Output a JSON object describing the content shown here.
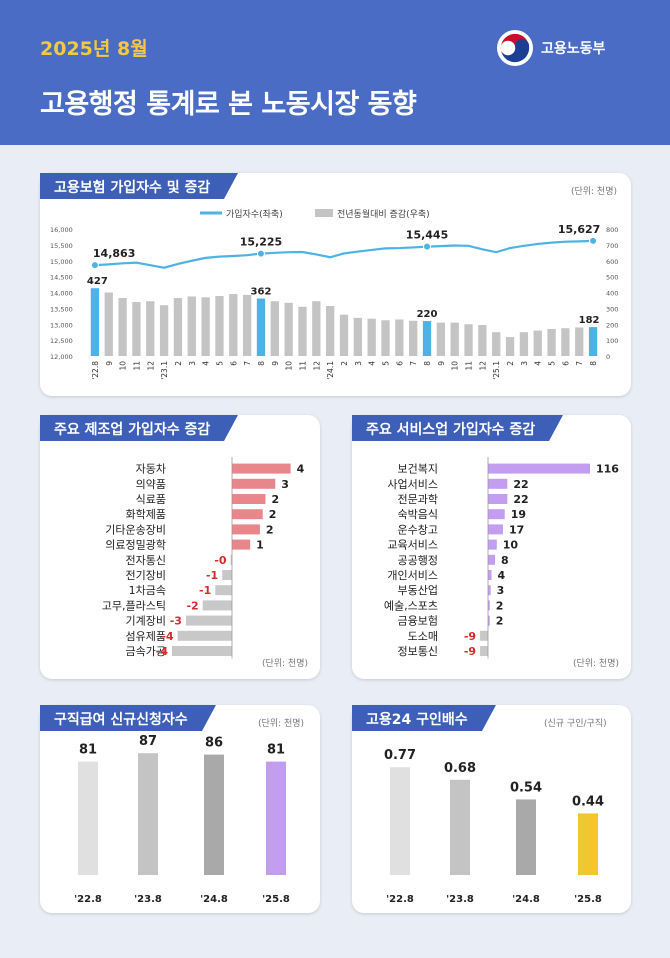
{
  "header": {
    "date": "2025년 8월",
    "title": "고용행정 통계로 본 노동시장 동향",
    "ministry": "고용노동부"
  },
  "colors": {
    "header_bg": "#4a6cc4",
    "tab_bg": "#3e5fb8",
    "date_text": "#f5c842",
    "line": "#4db2e6",
    "bar_gray": "#c4c4c4",
    "bar_highlight": "#4db2e6",
    "manufacturing_pos": "#e8868c",
    "negative_value_text": "#d62b2b",
    "service_bar": "#c39df0",
    "applicants_highlight": "#c39df0",
    "jobs_highlight": "#f2c62f"
  },
  "sections": {
    "insured": {
      "title": "고용보험 가입자수 및 증감",
      "unit": "(단위: 천명)"
    },
    "manufacturing": {
      "title": "주요 제조업 가입자수 증감",
      "unit": "(단위: 천명)"
    },
    "services": {
      "title": "주요 서비스업 가입자수 증감",
      "unit": "(단위: 천명)"
    },
    "applicants": {
      "title": "구직급여 신규신청자수",
      "unit": "(단위: 천명)"
    },
    "jobs_ratio": {
      "title": "고용24 구인배수",
      "unit": "(신규 구인/구직)"
    }
  },
  "chart_data": [
    {
      "type": "bar",
      "title": "고용보험 가입자수 및 증감",
      "legend": [
        "가입자수(좌축)",
        "전년동월대비 증감(우축)"
      ],
      "x": [
        "'22.8",
        "9",
        "10",
        "11",
        "12",
        "'23.1",
        "2",
        "3",
        "4",
        "5",
        "6",
        "7",
        "8",
        "9",
        "10",
        "11",
        "12",
        "'24.1",
        "2",
        "3",
        "4",
        "5",
        "6",
        "7",
        "8",
        "9",
        "10",
        "11",
        "12",
        "'25.1",
        "2",
        "3",
        "4",
        "5",
        "6",
        "7",
        "8"
      ],
      "y_left_ticks": [
        "12,000",
        "12,500",
        "13,000",
        "13,500",
        "14,000",
        "14,500",
        "15,000",
        "15,500",
        "16,000"
      ],
      "y_right_ticks": [
        "0",
        "100",
        "200",
        "300",
        "400",
        "500",
        "600",
        "700",
        "800"
      ],
      "ylim_left": [
        12000,
        16000
      ],
      "ylim_right": [
        0,
        800
      ],
      "series": [
        {
          "name": "가입자수(좌축)",
          "type": "line",
          "values": [
            14863,
            14885,
            14920,
            14940,
            14860,
            14780,
            14900,
            15000,
            15090,
            15130,
            15150,
            15175,
            15225,
            15250,
            15270,
            15275,
            15200,
            15110,
            15230,
            15290,
            15340,
            15390,
            15400,
            15420,
            15445,
            15460,
            15480,
            15470,
            15360,
            15270,
            15400,
            15470,
            15530,
            15570,
            15600,
            15610,
            15627
          ]
        },
        {
          "name": "전년동월대비 증감(우축)",
          "type": "bar",
          "values": [
            427,
            400,
            365,
            340,
            345,
            320,
            365,
            375,
            370,
            378,
            390,
            385,
            362,
            345,
            335,
            310,
            345,
            315,
            260,
            240,
            235,
            225,
            230,
            222,
            220,
            210,
            210,
            200,
            195,
            150,
            120,
            150,
            160,
            170,
            175,
            180,
            182
          ]
        }
      ],
      "labels": {
        "line": [
          {
            "at": "'22.8",
            "text": "14,863"
          },
          {
            "at": "8",
            "text": "15,225"
          },
          {
            "at": "8",
            "text": "15,445"
          },
          {
            "at": "8",
            "text": "15,627"
          }
        ],
        "bar": [
          {
            "at": "'22.8",
            "text": "427"
          },
          {
            "at": "8",
            "text": "362"
          },
          {
            "at": "8",
            "text": "220"
          },
          {
            "at": "8",
            "text": "182"
          }
        ]
      }
    },
    {
      "type": "bar",
      "title": "주요 제조업 가입자수 증감",
      "orientation": "horizontal",
      "categories": [
        "자동차",
        "의약품",
        "식료품",
        "화학제품",
        "기타운송장비",
        "의료정밀광학",
        "전자통신",
        "전기장비",
        "1차금속",
        "고무,플라스틱",
        "기계장비",
        "섬유제품",
        "금속가공"
      ],
      "value_labels": [
        "4",
        "3",
        "2",
        "2",
        "2",
        "1",
        "-0",
        "-1",
        "-1",
        "-2",
        "-3",
        "-4",
        "-4"
      ],
      "values": [
        4.2,
        3.1,
        2.4,
        2.2,
        2.0,
        1.3,
        -0.1,
        -0.7,
        -1.2,
        -2.1,
        -3.3,
        -3.9,
        -4.3
      ]
    },
    {
      "type": "bar",
      "title": "주요 서비스업 가입자수 증감",
      "orientation": "horizontal",
      "categories": [
        "보건복지",
        "사업서비스",
        "전문과학",
        "숙박음식",
        "운수창고",
        "교육서비스",
        "공공행정",
        "개인서비스",
        "부동산업",
        "예술,스포츠",
        "금융보험",
        "도소매",
        "정보통신"
      ],
      "value_labels": [
        "116",
        "22",
        "22",
        "19",
        "17",
        "10",
        "8",
        "4",
        "3",
        "2",
        "2",
        "-9",
        "-9"
      ],
      "values": [
        116,
        22,
        22,
        19,
        17,
        10,
        8,
        4,
        3,
        2,
        2,
        -9,
        -9
      ]
    },
    {
      "type": "bar",
      "title": "구직급여 신규신청자수",
      "categories": [
        "'22.8",
        "'23.8",
        "'24.8",
        "'25.8"
      ],
      "values": [
        81,
        87,
        86,
        81
      ],
      "ylim": [
        0,
        100
      ]
    },
    {
      "type": "bar",
      "title": "고용24 구인배수",
      "categories": [
        "'22.8",
        "'23.8",
        "'24.8",
        "'25.8"
      ],
      "values": [
        0.77,
        0.68,
        0.54,
        0.44
      ],
      "ylim": [
        0,
        1
      ]
    }
  ]
}
